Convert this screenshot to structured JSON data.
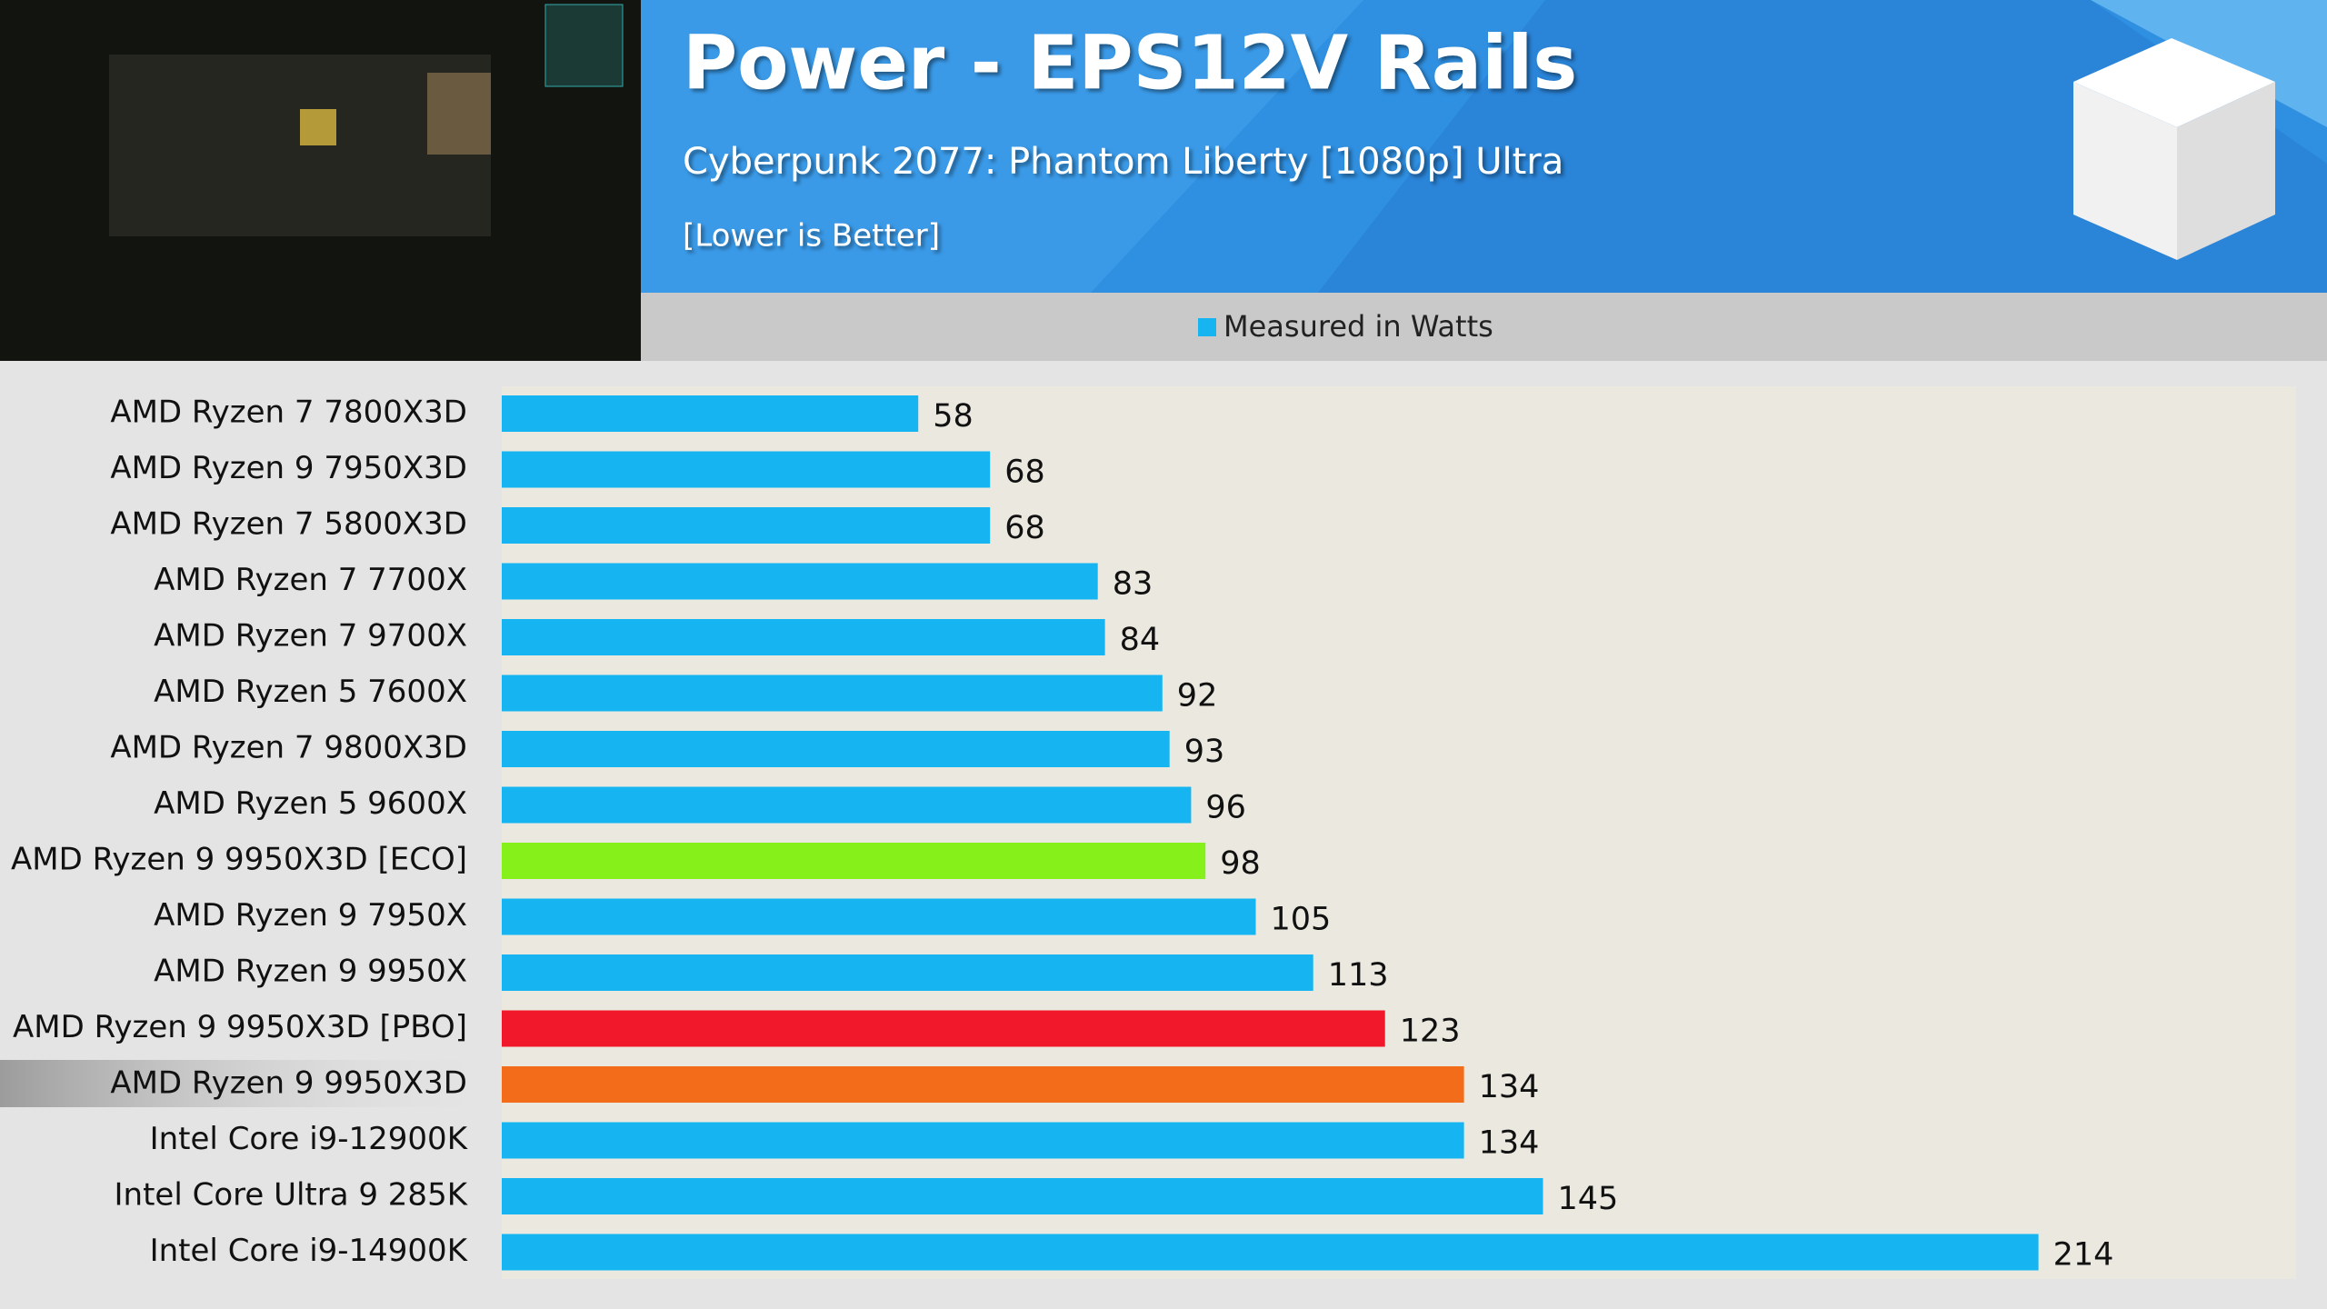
{
  "chart_data": {
    "type": "bar",
    "orientation": "horizontal",
    "title": "Power - EPS12V Rails",
    "subtitle": "Cyberpunk 2077: Phantom Liberty [1080p] Ultra",
    "note": "[Lower is Better]",
    "categories": [
      "AMD Ryzen 7 7800X3D",
      "AMD Ryzen 9 7950X3D",
      "AMD Ryzen 7 5800X3D",
      "AMD Ryzen 7 7700X",
      "AMD Ryzen 7 9700X",
      "AMD Ryzen 5 7600X",
      "AMD Ryzen 7 9800X3D",
      "AMD Ryzen 5 9600X",
      "AMD Ryzen 9 9950X3D [ECO]",
      "AMD Ryzen 9 7950X",
      "AMD Ryzen 9 9950X",
      "AMD Ryzen 9 9950X3D [PBO]",
      "AMD Ryzen 9 9950X3D",
      "Intel Core i9-12900K",
      "Intel Core Ultra 9 285K",
      "Intel Core i9-14900K"
    ],
    "series": [
      {
        "name": "Measured in Watts",
        "color": "#16b5f2",
        "values": [
          58,
          68,
          68,
          83,
          84,
          92,
          93,
          96,
          98,
          105,
          113,
          123,
          134,
          134,
          145,
          214
        ]
      }
    ],
    "colors": [
      "#16b5f2",
      "#16b5f2",
      "#16b5f2",
      "#16b5f2",
      "#16b5f2",
      "#16b5f2",
      "#16b5f2",
      "#16b5f2",
      "#86f01a",
      "#16b5f2",
      "#16b5f2",
      "#f0182a",
      "#f36c1a",
      "#16b5f2",
      "#16b5f2",
      "#16b5f2"
    ]
  }
}
